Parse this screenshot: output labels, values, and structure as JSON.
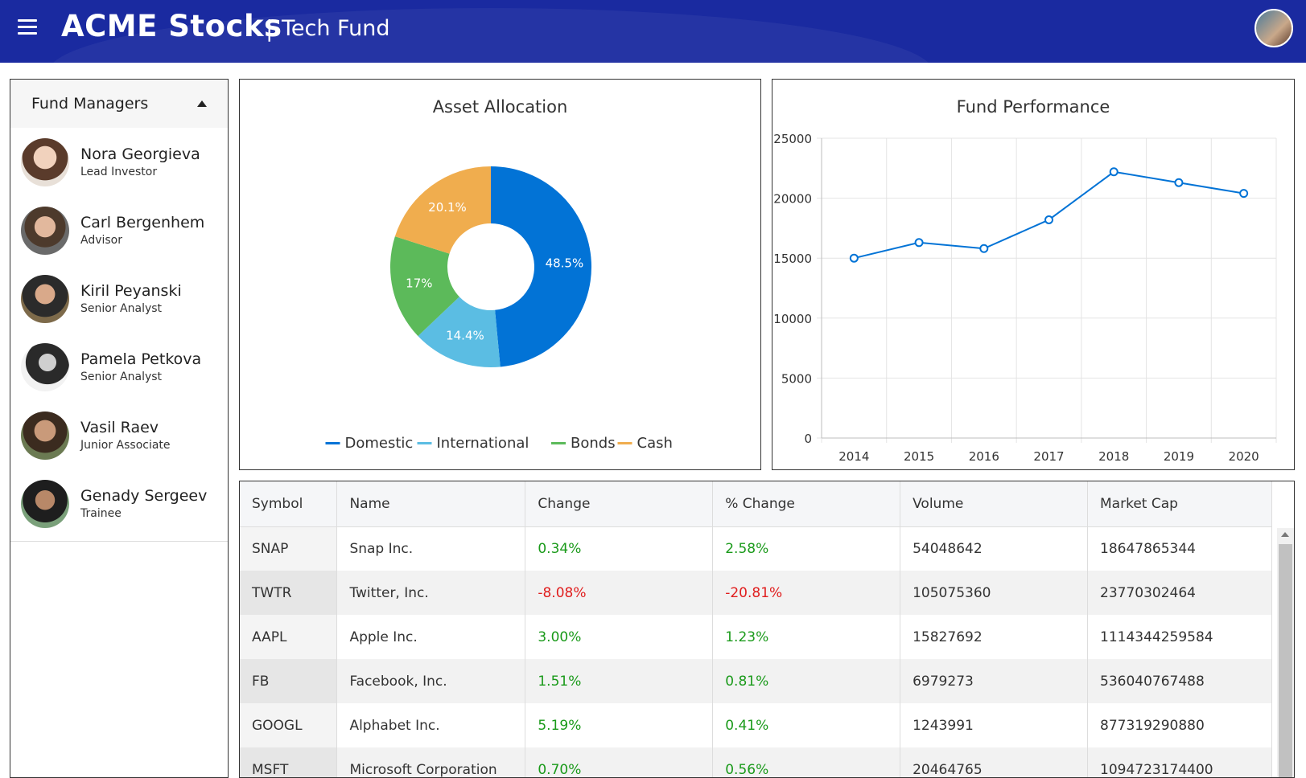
{
  "header": {
    "brand": "ACME Stocks",
    "separator": "|",
    "subtitle": "Tech Fund"
  },
  "sidebar": {
    "title": "Fund Managers",
    "managers": [
      {
        "name": "Nora Georgieva",
        "role": "Lead Investor"
      },
      {
        "name": "Carl Bergenhem",
        "role": "Advisor"
      },
      {
        "name": "Kiril Peyanski",
        "role": "Senior Analyst"
      },
      {
        "name": "Pamela Petkova",
        "role": "Senior Analyst"
      },
      {
        "name": "Vasil Raev",
        "role": "Junior Associate"
      },
      {
        "name": "Genady Sergeev",
        "role": "Trainee"
      }
    ]
  },
  "chart_data": [
    {
      "type": "pie",
      "title": "Asset Allocation",
      "categories": [
        "Domestic",
        "International",
        "Bonds",
        "Cash"
      ],
      "values": [
        48.5,
        14.4,
        17,
        20.1
      ],
      "labels": [
        "48.5%",
        "14.4%",
        "17%",
        "20.1%"
      ],
      "colors": [
        "#0273d6",
        "#5bbde3",
        "#5cba5a",
        "#f0ad4e"
      ],
      "legend": "bottom"
    },
    {
      "type": "line",
      "title": "Fund Performance",
      "x": [
        "2014",
        "2015",
        "2016",
        "2017",
        "2018",
        "2019",
        "2020"
      ],
      "series": [
        {
          "values": [
            15000,
            16300,
            15800,
            18200,
            22200,
            21300,
            20400
          ]
        }
      ],
      "ylim": [
        0,
        25000
      ],
      "yticks": [
        "25000",
        "20000",
        "15000",
        "10000",
        "5000",
        "0"
      ],
      "grid": true,
      "color": "#0273d6"
    }
  ],
  "table": {
    "columns": [
      "Symbol",
      "Name",
      "Change",
      "% Change",
      "Volume",
      "Market Cap"
    ],
    "rows": [
      {
        "symbol": "SNAP",
        "name": "Snap Inc.",
        "change": "0.34%",
        "pct": "2.58%",
        "volume": "54048642",
        "cap": "18647865344",
        "change_dir": "pos",
        "pct_dir": "pos"
      },
      {
        "symbol": "TWTR",
        "name": "Twitter, Inc.",
        "change": "-8.08%",
        "pct": "-20.81%",
        "volume": "105075360",
        "cap": "23770302464",
        "change_dir": "neg",
        "pct_dir": "neg"
      },
      {
        "symbol": "AAPL",
        "name": "Apple Inc.",
        "change": "3.00%",
        "pct": "1.23%",
        "volume": "15827692",
        "cap": "1114344259584",
        "change_dir": "pos",
        "pct_dir": "pos"
      },
      {
        "symbol": "FB",
        "name": "Facebook, Inc.",
        "change": "1.51%",
        "pct": "0.81%",
        "volume": "6979273",
        "cap": "536040767488",
        "change_dir": "pos",
        "pct_dir": "pos"
      },
      {
        "symbol": "GOOGL",
        "name": "Alphabet Inc.",
        "change": "5.19%",
        "pct": "0.41%",
        "volume": "1243991",
        "cap": "877319290880",
        "change_dir": "pos",
        "pct_dir": "pos"
      },
      {
        "symbol": "MSFT",
        "name": "Microsoft Corporation",
        "change": "0.70%",
        "pct": "0.56%",
        "volume": "20464765",
        "cap": "1094723174400",
        "change_dir": "pos",
        "pct_dir": "pos"
      }
    ]
  }
}
